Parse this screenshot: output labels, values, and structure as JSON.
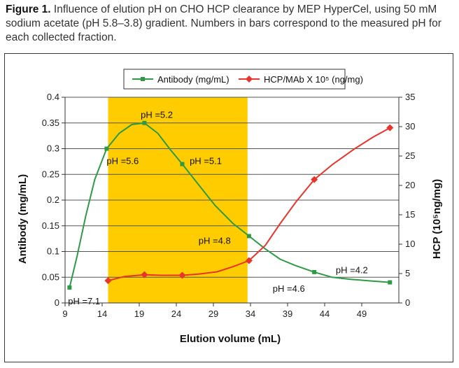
{
  "caption": {
    "figure_label": "Figure 1.",
    "text": "Influence of elution pH on CHO HCP clearance by MEP HyperCel, using 50 mM sodium acetate (pH 5.8–3.8) gradient. Numbers in bars correspond to the measured pH for each collected fraction."
  },
  "chart_data": {
    "type": "line",
    "xlabel": "Elution volume (mL)",
    "ylabel": "Antibody (mg/mL)",
    "y2label": "HCP (10⁵ng/mg)",
    "xlim": [
      9,
      54
    ],
    "x_ticks": [
      "9",
      "14",
      "19",
      "24",
      "29",
      "34",
      "39",
      "44",
      "49"
    ],
    "ylim": [
      0,
      0.4
    ],
    "y_ticks": [
      "0",
      "0.05",
      "0.1",
      "0.15",
      "0.2",
      "0.25",
      "0.3",
      "0.35",
      "0.4"
    ],
    "y2lim": [
      0,
      35
    ],
    "y2_ticks": [
      "0",
      "5",
      "10",
      "15",
      "20",
      "25",
      "30",
      "35"
    ],
    "grid": "horizontal",
    "legend_position": "top-center",
    "highlight": {
      "x_range": [
        14.8,
        33.6
      ],
      "color": "#FFCC00"
    },
    "series": [
      {
        "name": "Antibody (mg/mL)",
        "axis": "left",
        "color": "#2E9A45",
        "x": [
          9.6,
          14.6,
          19.7,
          24.8,
          33.8,
          42.6,
          52.8
        ],
        "values": [
          0.03,
          0.3,
          0.35,
          0.27,
          0.13,
          0.06,
          0.04
        ],
        "curve": [
          [
            9.6,
            0.03
          ],
          [
            10.6,
            0.09
          ],
          [
            11.8,
            0.17
          ],
          [
            13.0,
            0.24
          ],
          [
            14.6,
            0.3
          ],
          [
            16.3,
            0.33
          ],
          [
            18.0,
            0.347
          ],
          [
            19.7,
            0.35
          ],
          [
            21.5,
            0.33
          ],
          [
            23.2,
            0.298
          ],
          [
            24.8,
            0.27
          ],
          [
            27.0,
            0.23
          ],
          [
            29.2,
            0.19
          ],
          [
            31.6,
            0.155
          ],
          [
            33.8,
            0.13
          ],
          [
            36.0,
            0.105
          ],
          [
            38.0,
            0.085
          ],
          [
            40.0,
            0.073
          ],
          [
            42.6,
            0.06
          ],
          [
            45.0,
            0.05
          ],
          [
            47.5,
            0.046
          ],
          [
            50.0,
            0.043
          ],
          [
            52.8,
            0.04
          ]
        ]
      },
      {
        "name": "HCP/MAb X 10⁵ (ng/mg)",
        "axis": "right",
        "color": "#E8342A",
        "x": [
          14.8,
          19.7,
          24.8,
          33.8,
          42.6,
          52.8
        ],
        "values": [
          3.8,
          4.8,
          4.7,
          7.2,
          21.0,
          29.8
        ],
        "curve": [
          [
            14.8,
            3.8
          ],
          [
            17.0,
            4.5
          ],
          [
            19.7,
            4.8
          ],
          [
            22.0,
            4.7
          ],
          [
            24.8,
            4.7
          ],
          [
            27.0,
            4.9
          ],
          [
            29.5,
            5.3
          ],
          [
            31.7,
            6.2
          ],
          [
            33.8,
            7.2
          ],
          [
            36.0,
            9.8
          ],
          [
            38.0,
            13.5
          ],
          [
            40.2,
            17.3
          ],
          [
            42.6,
            21.0
          ],
          [
            45.0,
            23.5
          ],
          [
            48.0,
            26.2
          ],
          [
            50.5,
            28.2
          ],
          [
            52.8,
            29.8
          ]
        ]
      }
    ],
    "annotations": [
      {
        "text": "pH =7.1",
        "x": 9.4,
        "y": -0.003
      },
      {
        "text": "pH =5.6",
        "x": 14.6,
        "y": 0.27
      },
      {
        "text": "pH =5.2",
        "x": 19.2,
        "y": 0.36
      },
      {
        "text": "pH =5.1",
        "x": 25.8,
        "y": 0.27
      },
      {
        "text": "pH =4.8",
        "x": 27.0,
        "y": 0.115
      },
      {
        "text": "pH =4.6",
        "x": 37.0,
        "y": 0.022
      },
      {
        "text": "pH =4.2",
        "x": 45.5,
        "y": 0.058
      }
    ]
  }
}
